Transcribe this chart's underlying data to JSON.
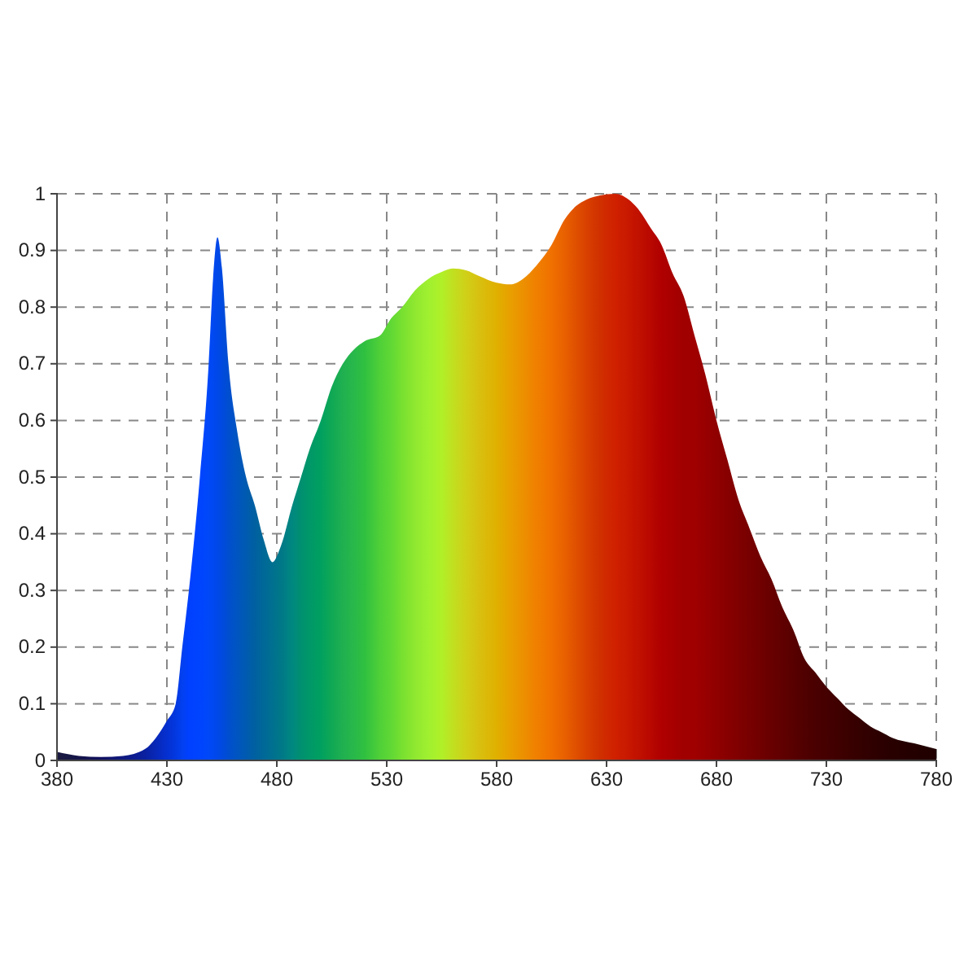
{
  "chart_data": {
    "type": "area",
    "x": [
      380,
      390,
      400,
      410,
      420,
      425,
      430,
      434,
      437,
      440,
      445,
      449,
      451,
      453,
      455,
      458,
      462,
      466,
      470,
      474,
      478,
      482,
      487,
      491,
      495,
      500,
      505,
      510,
      515,
      520,
      527,
      532,
      537,
      543,
      549,
      555,
      560,
      566,
      572,
      580,
      586,
      592,
      598,
      605,
      611,
      616,
      621,
      627,
      634,
      640,
      645,
      650,
      655,
      660,
      665,
      670,
      675,
      680,
      685,
      690,
      695,
      700,
      705,
      710,
      715,
      720,
      725,
      730,
      735,
      740,
      745,
      750,
      755,
      760,
      770,
      780
    ],
    "values": [
      0.015,
      0.008,
      0.006,
      0.008,
      0.02,
      0.04,
      0.07,
      0.1,
      0.2,
      0.3,
      0.5,
      0.7,
      0.85,
      0.923,
      0.87,
      0.7,
      0.58,
      0.5,
      0.45,
      0.39,
      0.35,
      0.38,
      0.45,
      0.5,
      0.55,
      0.6,
      0.66,
      0.7,
      0.725,
      0.74,
      0.75,
      0.78,
      0.8,
      0.83,
      0.85,
      0.862,
      0.868,
      0.865,
      0.855,
      0.843,
      0.84,
      0.85,
      0.873,
      0.91,
      0.955,
      0.978,
      0.99,
      0.997,
      1.0,
      0.99,
      0.97,
      0.94,
      0.91,
      0.86,
      0.82,
      0.75,
      0.68,
      0.6,
      0.53,
      0.46,
      0.41,
      0.36,
      0.32,
      0.27,
      0.23,
      0.18,
      0.155,
      0.13,
      0.11,
      0.09,
      0.075,
      0.06,
      0.05,
      0.04,
      0.03,
      0.02
    ],
    "colors": [
      "#1a1a40",
      "#15154a",
      "#101060",
      "#101a80",
      "#0a20a0",
      "#0828b8",
      "#0530d0",
      "#0338e0",
      "#0240f0",
      "#0040ff",
      "#0044ff",
      "#0048f8",
      "#0048f0",
      "#0048e8",
      "#004ae0",
      "#004ed0",
      "#0055c0",
      "#005ab0",
      "#0060a0",
      "#006898",
      "#007090",
      "#007888",
      "#008880",
      "#009070",
      "#009868",
      "#00a060",
      "#10a855",
      "#20b050",
      "#28b84a",
      "#30c040",
      "#50d038",
      "#60d835",
      "#78e030",
      "#90e830",
      "#a0f030",
      "#b0f028",
      "#c0e020",
      "#d0d018",
      "#d8c010",
      "#e0b000",
      "#e8a000",
      "#ec9000",
      "#f08000",
      "#f07000",
      "#e86000",
      "#e05000",
      "#d84000",
      "#d03000",
      "#d02000",
      "#c81800",
      "#c01000",
      "#b80800",
      "#b00000",
      "#a80000",
      "#a00000",
      "#a00000",
      "#980000",
      "#900000",
      "#880000",
      "#800000",
      "#780000",
      "#700000",
      "#680000",
      "#600000",
      "#580000",
      "#500000",
      "#4a0000",
      "#450000",
      "#400000",
      "#3a0000",
      "#350000",
      "#300000",
      "#2c0000",
      "#280000",
      "#240000",
      "#200000"
    ],
    "xlim": [
      380,
      780
    ],
    "ylim": [
      0,
      1
    ],
    "xticks": [
      380,
      430,
      480,
      530,
      580,
      630,
      680,
      730,
      780
    ],
    "yticks": [
      0,
      0.1,
      0.2,
      0.3,
      0.4,
      0.5,
      0.6,
      0.7,
      0.8,
      0.9,
      1
    ],
    "grid": true
  }
}
